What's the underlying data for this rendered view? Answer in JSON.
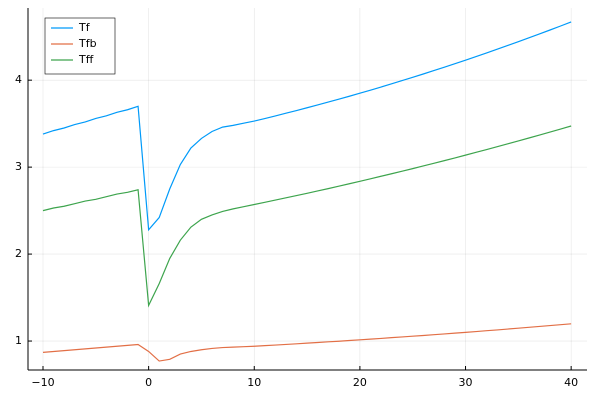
{
  "chart_data": {
    "type": "line",
    "x": [
      -10,
      -9,
      -8,
      -7,
      -6,
      -5,
      -4,
      -3,
      -2,
      -1,
      0,
      1,
      2,
      3,
      4,
      5,
      6,
      7,
      8,
      9,
      10,
      11,
      12,
      13,
      14,
      15,
      16,
      17,
      18,
      19,
      20,
      21,
      22,
      23,
      24,
      25,
      26,
      27,
      28,
      29,
      30,
      31,
      32,
      33,
      34,
      35,
      36,
      37,
      38,
      39,
      40
    ],
    "series": [
      {
        "name": "Tf",
        "color": "#009af9",
        "values": [
          3.38,
          3.42,
          3.45,
          3.49,
          3.52,
          3.56,
          3.59,
          3.63,
          3.66,
          3.7,
          2.28,
          2.42,
          2.75,
          3.03,
          3.22,
          3.33,
          3.41,
          3.46,
          3.48,
          3.505,
          3.53,
          3.559,
          3.589,
          3.62,
          3.651,
          3.683,
          3.715,
          3.748,
          3.781,
          3.815,
          3.85,
          3.885,
          3.921,
          3.958,
          3.995,
          4.033,
          4.071,
          4.11,
          4.149,
          4.189,
          4.23,
          4.271,
          4.313,
          4.356,
          4.399,
          4.443,
          4.487,
          4.532,
          4.577,
          4.623,
          4.67
        ]
      },
      {
        "name": "Tfb",
        "color": "#e26f46",
        "values": [
          0.87,
          0.88,
          0.89,
          0.9,
          0.91,
          0.92,
          0.93,
          0.94,
          0.95,
          0.96,
          0.88,
          0.77,
          0.79,
          0.85,
          0.88,
          0.9,
          0.915,
          0.925,
          0.93,
          0.935,
          0.94,
          0.947,
          0.954,
          0.961,
          0.968,
          0.976,
          0.983,
          0.991,
          0.998,
          1.006,
          1.014,
          1.022,
          1.03,
          1.039,
          1.047,
          1.056,
          1.064,
          1.073,
          1.082,
          1.091,
          1.1,
          1.109,
          1.119,
          1.128,
          1.138,
          1.148,
          1.158,
          1.168,
          1.178,
          1.188,
          1.198
        ]
      },
      {
        "name": "Tff",
        "color": "#3da44d",
        "values": [
          2.5,
          2.53,
          2.55,
          2.58,
          2.61,
          2.63,
          2.66,
          2.69,
          2.71,
          2.74,
          1.41,
          1.66,
          1.95,
          2.16,
          2.31,
          2.4,
          2.45,
          2.49,
          2.52,
          2.545,
          2.57,
          2.595,
          2.621,
          2.647,
          2.673,
          2.699,
          2.726,
          2.753,
          2.781,
          2.809,
          2.837,
          2.866,
          2.895,
          2.924,
          2.953,
          2.983,
          3.014,
          3.044,
          3.075,
          3.106,
          3.138,
          3.17,
          3.202,
          3.235,
          3.268,
          3.301,
          3.335,
          3.369,
          3.403,
          3.438,
          3.473
        ]
      }
    ],
    "xlim": [
      -11.42,
      41.5
    ],
    "ylim": [
      0.667,
      4.83
    ],
    "xticks": [
      {
        "value": -10,
        "label": "−10"
      },
      0,
      10,
      20,
      30,
      40
    ],
    "yticks": [
      1,
      2,
      3,
      4
    ],
    "grid": true,
    "legend": "top-left"
  }
}
